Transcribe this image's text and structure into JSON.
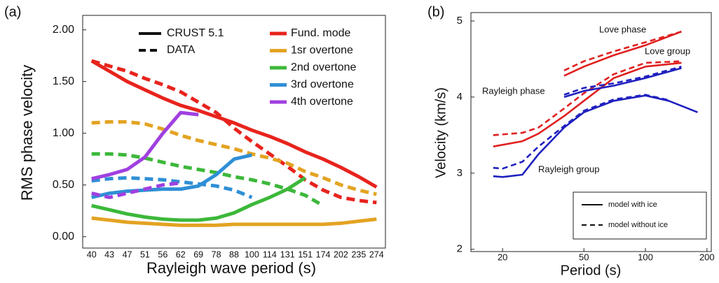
{
  "chart_data": [
    {
      "type": "line",
      "panel_label": "(a)",
      "y_label": "RMS phase velocity",
      "x_label": "Rayleigh wave period (s)",
      "categories": [
        "40",
        "43",
        "47",
        "51",
        "56",
        "62",
        "69",
        "78",
        "88",
        "100",
        "114",
        "131",
        "151",
        "174",
        "202",
        "235",
        "274"
      ],
      "ylim": [
        -0.11,
        2.14
      ],
      "yticks": [
        {
          "value": 0,
          "label": "0.00"
        },
        {
          "value": 0.5,
          "label": "0.50"
        },
        {
          "value": 1,
          "label": "1.00"
        },
        {
          "value": 1.5,
          "label": "1.50"
        },
        {
          "value": 2,
          "label": "2.00"
        }
      ],
      "line_styles": [
        "CRUST 5.1",
        "DATA"
      ],
      "series": [
        {
          "name": "Fund. mode",
          "color": "#e8231d",
          "values": [
            1.7,
            1.6,
            1.5,
            1.42,
            1.34,
            1.27,
            1.22,
            1.16,
            1.1,
            1.03,
            0.97,
            0.9,
            0.82,
            0.75,
            0.67,
            0.58,
            0.48
          ],
          "dashed_values": [
            1.7,
            1.65,
            1.6,
            1.53,
            1.47,
            1.4,
            1.3,
            1.2,
            1.05,
            0.92,
            0.8,
            0.68,
            0.55,
            0.45,
            0.38,
            0.35,
            0.33
          ]
        },
        {
          "name": "1sr overtone",
          "color": "#e3a322",
          "values": [
            0.18,
            0.16,
            0.14,
            0.13,
            0.12,
            0.11,
            0.11,
            0.11,
            0.12,
            0.12,
            0.12,
            0.12,
            0.12,
            0.12,
            0.13,
            0.15,
            0.17
          ],
          "dashed_values": [
            1.1,
            1.11,
            1.11,
            1.09,
            1.04,
            0.98,
            0.93,
            0.89,
            0.85,
            0.8,
            0.76,
            0.71,
            0.63,
            0.57,
            0.5,
            0.45,
            0.41
          ]
        },
        {
          "name": "2nd overtone",
          "color": "#3cb83a",
          "values": [
            0.3,
            0.26,
            0.22,
            0.19,
            0.17,
            0.16,
            0.16,
            0.18,
            0.23,
            0.31,
            0.38,
            0.46,
            0.57,
            null,
            null,
            null,
            null
          ],
          "dashed_values": [
            0.8,
            0.8,
            0.79,
            0.76,
            0.72,
            0.68,
            0.65,
            0.62,
            0.58,
            0.55,
            0.51,
            0.46,
            0.4,
            0.3,
            null,
            null,
            null
          ]
        },
        {
          "name": "3rd overtone",
          "color": "#2f8fd6",
          "values": [
            0.38,
            0.42,
            0.44,
            0.45,
            0.46,
            0.46,
            0.49,
            0.6,
            0.75,
            0.79,
            null,
            null,
            null,
            null,
            null,
            null,
            null
          ],
          "dashed_values": [
            0.54,
            0.56,
            0.57,
            0.56,
            0.55,
            0.53,
            0.51,
            0.49,
            0.45,
            0.38,
            null,
            null,
            null,
            null,
            null,
            null,
            null
          ]
        },
        {
          "name": "4th overtone",
          "color": "#a040e0",
          "values": [
            0.56,
            0.6,
            0.65,
            0.77,
            1.0,
            1.2,
            1.18,
            null,
            null,
            null,
            null,
            null,
            null,
            null,
            null,
            null,
            null
          ],
          "dashed_values": [
            0.42,
            0.38,
            0.42,
            0.46,
            0.5,
            0.52,
            null,
            null,
            null,
            null,
            null,
            null,
            null,
            null,
            null,
            null,
            null
          ]
        }
      ]
    },
    {
      "type": "line",
      "panel_label": "(b)",
      "y_label": "Velocity (km/s)",
      "x_label": "Period (s)",
      "xscale": "log",
      "xlim": [
        14,
        210
      ],
      "xticks": [
        20,
        50,
        100,
        200
      ],
      "ylim": [
        1.97,
        5.11
      ],
      "yticks": [
        2,
        3,
        4,
        5
      ],
      "line_styles": [
        "model with ice",
        "model without ice"
      ],
      "series": [
        {
          "name": "Love phase",
          "color": "#e02020",
          "x": [
            40,
            50,
            70,
            100,
            150
          ],
          "values": [
            4.28,
            4.4,
            4.55,
            4.68,
            4.86
          ],
          "dashed_x": [
            40,
            50,
            70,
            100,
            150
          ],
          "dashed_values": [
            4.35,
            4.47,
            4.6,
            4.72,
            4.86
          ]
        },
        {
          "name": "Love group",
          "color": "#e02020",
          "x": [
            18,
            25,
            30,
            40,
            50,
            70,
            100,
            150
          ],
          "values": [
            3.35,
            3.42,
            3.52,
            3.75,
            3.95,
            4.25,
            4.4,
            4.45
          ],
          "dashed_x": [
            18,
            25,
            30,
            40,
            50,
            70,
            100,
            150
          ],
          "dashed_values": [
            3.5,
            3.53,
            3.6,
            3.85,
            4.05,
            4.3,
            4.45,
            4.47
          ]
        },
        {
          "name": "Rayleigh phase",
          "color": "#2020c0",
          "x": [
            40,
            50,
            70,
            100,
            150
          ],
          "values": [
            4.0,
            4.08,
            4.15,
            4.25,
            4.38
          ],
          "dashed_x": [
            40,
            50,
            70,
            100,
            150
          ],
          "dashed_values": [
            4.03,
            4.12,
            4.18,
            4.27,
            4.4
          ]
        },
        {
          "name": "Rayleigh group",
          "color": "#2020c0",
          "x": [
            18,
            20,
            25,
            30,
            40,
            50,
            70,
            100,
            130,
            180
          ],
          "values": [
            2.96,
            2.95,
            2.98,
            3.25,
            3.6,
            3.8,
            3.95,
            4.02,
            3.95,
            3.8
          ],
          "dashed_x": [
            18,
            20,
            25,
            30,
            40,
            50,
            70,
            100,
            130
          ],
          "dashed_values": [
            3.07,
            3.06,
            3.15,
            3.35,
            3.62,
            3.82,
            3.97,
            4.03,
            3.96
          ]
        }
      ]
    }
  ]
}
